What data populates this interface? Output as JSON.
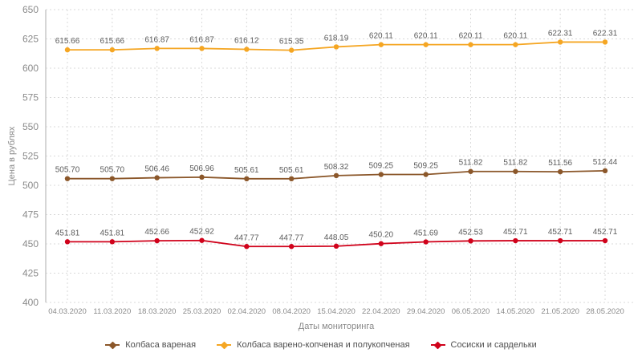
{
  "chart_data": {
    "type": "line",
    "title": "",
    "xlabel": "Даты мониторинга",
    "ylabel": "Цена в рублях",
    "ylim": [
      400,
      650
    ],
    "ytick_step": 25,
    "yticks": [
      650,
      625,
      600,
      575,
      550,
      525,
      500,
      475,
      450,
      425,
      400
    ],
    "grid": true,
    "grid_style": "dashed",
    "legend_position": "bottom",
    "marker": "circle",
    "value_labels_shown": true,
    "categories": [
      "04.03.2020",
      "11.03.2020",
      "18.03.2020",
      "25.03.2020",
      "02.04.2020",
      "08.04.2020",
      "15.04.2020",
      "22.04.2020",
      "29.04.2020",
      "06.05.2020",
      "14.05.2020",
      "21.05.2020",
      "28.05.2020"
    ],
    "series": [
      {
        "name": "Колбаса вареная",
        "color": "#8B572A",
        "values": [
          505.7,
          505.7,
          506.46,
          506.96,
          505.61,
          505.61,
          508.32,
          509.25,
          509.25,
          511.82,
          511.82,
          511.56,
          512.44
        ]
      },
      {
        "name": "Колбаса варено-копченая и полукопченая",
        "color": "#F5A623",
        "values": [
          615.66,
          615.66,
          616.87,
          616.87,
          616.12,
          615.35,
          618.19,
          620.11,
          620.11,
          620.11,
          620.11,
          622.31,
          622.31
        ]
      },
      {
        "name": "Сосиски и сардельки",
        "color": "#D0021B",
        "values": [
          451.81,
          451.81,
          452.66,
          452.92,
          447.77,
          447.77,
          448.05,
          450.2,
          451.69,
          452.53,
          452.71,
          452.71,
          452.71
        ]
      }
    ],
    "colors": {
      "grid": "#d9d9d9",
      "axis_line": "#c9c9c9",
      "tick_label": "#8a8a8a",
      "value_label": "#5c5c5c",
      "axis_title": "#8a8a8a",
      "legend_text": "#4f4f4f",
      "background": "#ffffff"
    }
  }
}
